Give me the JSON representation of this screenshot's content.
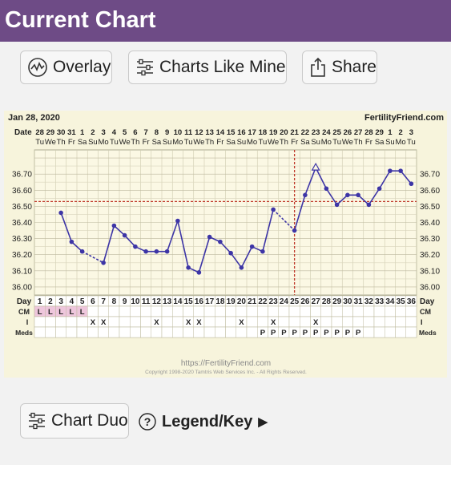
{
  "header": {
    "title": "Current Chart"
  },
  "toolbar": {
    "overlay_label": "Overlay",
    "charts_like_mine_label": "Charts Like Mine",
    "share_label": "Share"
  },
  "footer_actions": {
    "chart_duo_label": "Chart Duo",
    "legend_label": "Legend/Key",
    "legend_arrow": "▶"
  },
  "chart_header": {
    "date": "Jan 28, 2020",
    "site": "FertilityFriend.com"
  },
  "chart_footer": {
    "url": "https://FertilityFriend.com",
    "copyright": "Copyright 1998-2020 Tamtris Web Services Inc. - All Rights Reserved."
  },
  "row_labels": {
    "date": "Date",
    "day": "Day",
    "cm": "CM",
    "i": "I",
    "meds": "Meds"
  },
  "colors": {
    "title_bar": "#6e4b86",
    "line": "#3d35a6",
    "coverline": "#c0392b",
    "cm_fill": "#eec6dc"
  },
  "icons": {
    "overlay": "chart-overlay-icon",
    "charts_like_mine": "sliders-icon",
    "share": "share-icon",
    "chart_duo": "sliders-icon",
    "legend": "question-circle-icon"
  },
  "chart_data": {
    "type": "line",
    "title": "",
    "xlabel": "Day",
    "ylabel": "",
    "ylim": [
      35.95,
      36.85
    ],
    "y_ticks": [
      "36.00",
      "36.10",
      "36.20",
      "36.30",
      "36.40",
      "36.50",
      "36.60",
      "36.70"
    ],
    "days": [
      "1",
      "2",
      "3",
      "4",
      "5",
      "6",
      "7",
      "8",
      "9",
      "10",
      "11",
      "12",
      "13",
      "14",
      "15",
      "16",
      "17",
      "18",
      "19",
      "20",
      "21",
      "22",
      "23",
      "24",
      "25",
      "26",
      "27",
      "28",
      "29",
      "30",
      "31",
      "32",
      "33",
      "34",
      "35",
      "36"
    ],
    "dates": [
      "28",
      "29",
      "30",
      "31",
      "1",
      "2",
      "3",
      "4",
      "5",
      "6",
      "7",
      "8",
      "9",
      "10",
      "11",
      "12",
      "13",
      "14",
      "15",
      "16",
      "17",
      "18",
      "19",
      "20",
      "21",
      "22",
      "23",
      "24",
      "25",
      "26",
      "27",
      "28",
      "29",
      "1",
      "2",
      "3"
    ],
    "weekdays": [
      "Tu",
      "We",
      "Th",
      "Fr",
      "Sa",
      "Su",
      "Mo",
      "Tu",
      "We",
      "Th",
      "Fr",
      "Sa",
      "Su",
      "Mo",
      "Tu",
      "We",
      "Th",
      "Fr",
      "Sa",
      "Su",
      "Mo",
      "Tu",
      "We",
      "Th",
      "Fr",
      "Sa",
      "Su",
      "Mo",
      "Tu",
      "We",
      "Th",
      "Fr",
      "Sa",
      "Su",
      "Mo",
      "Tu"
    ],
    "series": [
      {
        "values": [
          null,
          null,
          36.46,
          36.28,
          36.22,
          null,
          36.15,
          36.38,
          36.32,
          36.25,
          36.22,
          36.22,
          36.22,
          36.41,
          36.12,
          36.09,
          36.31,
          36.28,
          36.21,
          36.12,
          36.25,
          36.22,
          36.48,
          null,
          36.35,
          36.57,
          36.74,
          36.61,
          36.51,
          36.57,
          36.57,
          36.51,
          36.61,
          36.72,
          36.72,
          36.64
        ],
        "dashed_segments": [
          [
            5,
            7
          ],
          [
            23,
            25
          ]
        ],
        "open_markers": [
          27
        ]
      }
    ],
    "coverline": 36.53,
    "ovulation_day": 25,
    "cm": [
      "L",
      "L",
      "L",
      "L",
      "L",
      "",
      "",
      "",
      "",
      "",
      "",
      "",
      "",
      "",
      "",
      "",
      "",
      "",
      "",
      "",
      "",
      "",
      "",
      "",
      "",
      "",
      "",
      "",
      "",
      "",
      "",
      "",
      "",
      "",
      "",
      ""
    ],
    "intercourse": [
      "",
      "",
      "",
      "",
      "",
      "X",
      "X",
      "",
      "",
      "",
      "",
      "X",
      "",
      "",
      "X",
      "X",
      "",
      "",
      "",
      "X",
      "",
      "",
      "X",
      "",
      "",
      "",
      "X",
      "",
      "",
      "",
      "",
      "",
      "",
      "",
      "",
      ""
    ],
    "meds": [
      "",
      "",
      "",
      "",
      "",
      "",
      "",
      "",
      "",
      "",
      "",
      "",
      "",
      "",
      "",
      "",
      "",
      "",
      "",
      "",
      "",
      "P",
      "P",
      "P",
      "P",
      "P",
      "P",
      "P",
      "P",
      "P",
      "P",
      "",
      "",
      "",
      "",
      ""
    ]
  }
}
